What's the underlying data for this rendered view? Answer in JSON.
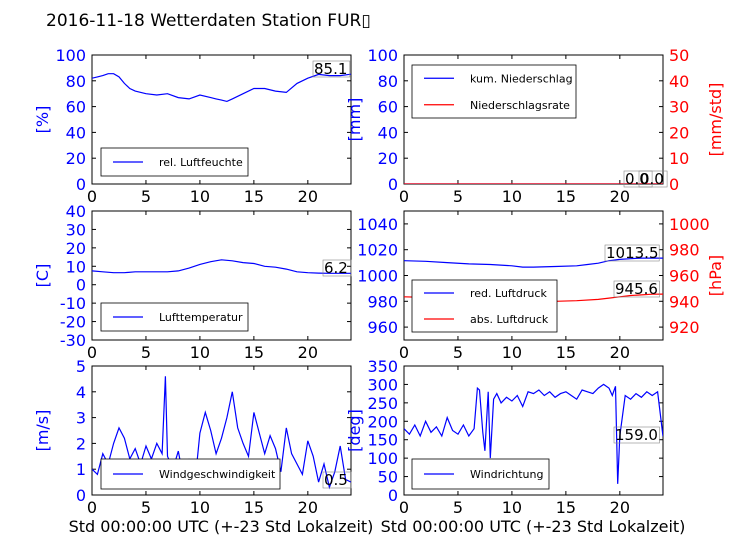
{
  "figure": {
    "title": "2016-11-18 Wetterdaten Station FUR▯",
    "xlabel": "Std 00:00:00 UTC (+-23 Std Lokalzeit)"
  },
  "colors": {
    "left_axis": "#0000ff",
    "right_axis": "#ff0000",
    "frame": "#000000"
  },
  "chart_data": [
    {
      "id": "humidity",
      "type": "line",
      "ylabel": "[%]",
      "xlim": [
        0,
        24
      ],
      "ylim": [
        0,
        100
      ],
      "xticks": [
        0,
        5,
        10,
        15,
        20
      ],
      "yticks": [
        0,
        20,
        40,
        60,
        80,
        100
      ],
      "legend": {
        "placement": "lower-left"
      },
      "annotation": "85.1",
      "series": [
        {
          "name": "rel. Luftfeuchte",
          "color": "#0000ff",
          "x": [
            0,
            0.5,
            1,
            1.5,
            2,
            2.5,
            3,
            3.5,
            4,
            5,
            6,
            7,
            8,
            9,
            10,
            11,
            11.5,
            12,
            12.5,
            13,
            14,
            15,
            16,
            17,
            18,
            19,
            20,
            21,
            22,
            23,
            24
          ],
          "y": [
            82,
            83,
            84,
            85.5,
            85.5,
            83,
            78,
            74,
            72,
            70,
            69,
            70,
            67,
            66,
            69,
            67,
            66,
            65,
            64,
            66,
            70,
            74,
            74,
            72,
            71,
            78,
            82,
            85,
            84,
            84,
            85.1
          ]
        }
      ]
    },
    {
      "id": "precipitation",
      "type": "line",
      "ylabel": "[mm]",
      "ylabel_right": "[mm/std]",
      "xlim": [
        0,
        24
      ],
      "ylim": [
        0,
        100
      ],
      "ylim_right": [
        0,
        50
      ],
      "xticks": [
        0,
        5,
        10,
        15,
        20
      ],
      "yticks": [
        0,
        20,
        40,
        60,
        80,
        100
      ],
      "yticks_right": [
        0,
        10,
        20,
        30,
        40,
        50
      ],
      "legend": {
        "placement": "upper-left"
      },
      "annotations": [
        "0.0",
        "0.0"
      ],
      "series": [
        {
          "name": "kum. Niederschlag",
          "color": "#0000ff",
          "axis": "left",
          "x": [
            0,
            24
          ],
          "y": [
            0,
            0
          ]
        },
        {
          "name": "Niederschlagsrate",
          "color": "#ff0000",
          "axis": "right",
          "x": [
            0,
            24
          ],
          "y": [
            0,
            0
          ]
        }
      ]
    },
    {
      "id": "temperature",
      "type": "line",
      "ylabel": "[C]",
      "xlim": [
        0,
        24
      ],
      "ylim": [
        -30,
        40
      ],
      "xticks": [
        0,
        5,
        10,
        15,
        20
      ],
      "yticks": [
        -30,
        -20,
        -10,
        0,
        10,
        20,
        30,
        40
      ],
      "legend": {
        "placement": "lower-left"
      },
      "annotation": "6.2",
      "series": [
        {
          "name": "Lufttemperatur",
          "color": "#0000ff",
          "x": [
            0,
            1,
            2,
            3,
            4,
            5,
            6,
            7,
            8,
            9,
            10,
            11,
            12,
            13,
            14,
            15,
            16,
            17,
            18,
            19,
            20,
            21,
            22,
            23,
            24
          ],
          "y": [
            7.5,
            7,
            6.5,
            6.5,
            7,
            7,
            7,
            7,
            7.5,
            9,
            11,
            12.5,
            13.5,
            13,
            12,
            11.5,
            10,
            9.5,
            8.5,
            7,
            6.5,
            6.3,
            6.2,
            6.2,
            6.2
          ]
        }
      ]
    },
    {
      "id": "pressure",
      "type": "line",
      "ylabel_right": "[hPa]",
      "xlim": [
        0,
        24
      ],
      "ylim": [
        950,
        1050
      ],
      "ylim_right": [
        910,
        1010
      ],
      "xticks": [
        0,
        5,
        10,
        15,
        20
      ],
      "yticks": [
        960,
        980,
        1000,
        1020,
        1040
      ],
      "yticks_right": [
        920,
        940,
        960,
        980,
        1000
      ],
      "legend": {
        "placement": "lower-left"
      },
      "annotations": [
        "1013.5",
        "945.6"
      ],
      "series": [
        {
          "name": "red. Luftdruck",
          "color": "#0000ff",
          "axis": "left",
          "x": [
            0,
            2,
            4,
            6,
            8,
            10,
            11,
            12,
            14,
            16,
            17,
            18,
            19,
            20,
            21,
            22,
            23,
            24
          ],
          "y": [
            1011.5,
            1011,
            1010,
            1009,
            1008.5,
            1007.5,
            1006.5,
            1006.5,
            1007,
            1007.5,
            1008.5,
            1009.5,
            1011.5,
            1012.5,
            1013,
            1013.5,
            1013.5,
            1013.5
          ]
        },
        {
          "name": "abs. Luftdruck",
          "color": "#ff0000",
          "axis": "right",
          "x": [
            0,
            2,
            4,
            6,
            8,
            10,
            12,
            14,
            16,
            18,
            19,
            20,
            21,
            22,
            23,
            24
          ],
          "y": [
            943.5,
            943,
            942,
            941,
            940.5,
            940,
            939.5,
            940,
            940.5,
            941.5,
            942.5,
            943.5,
            944.5,
            945,
            945.5,
            945.6
          ]
        }
      ]
    },
    {
      "id": "wind-speed",
      "type": "line",
      "ylabel": "[m/s]",
      "xlim": [
        0,
        24
      ],
      "ylim": [
        0,
        5
      ],
      "xticks": [
        0,
        5,
        10,
        15,
        20
      ],
      "yticks": [
        0,
        1,
        2,
        3,
        4,
        5
      ],
      "legend": {
        "placement": "lower-center"
      },
      "annotation": "0.5",
      "series": [
        {
          "name": "Windgeschwindigkeit",
          "color": "#0000ff",
          "x": [
            0,
            0.5,
            1,
            1.5,
            2,
            2.5,
            3,
            3.5,
            4,
            4.5,
            5,
            5.5,
            6,
            6.5,
            6.8,
            7,
            7.5,
            8,
            8.5,
            9,
            9.5,
            10,
            10.5,
            11,
            11.5,
            12,
            12.5,
            13,
            13.5,
            14,
            14.5,
            15,
            15.5,
            16,
            16.5,
            17,
            17.5,
            18,
            18.5,
            19,
            19.5,
            20,
            20.5,
            21,
            21.5,
            22,
            22.5,
            23,
            23.5,
            24
          ],
          "y": [
            1.0,
            0.8,
            1.6,
            1.2,
            2.0,
            2.6,
            2.2,
            1.4,
            1.8,
            1.2,
            1.9,
            1.4,
            2.0,
            1.6,
            4.6,
            1.5,
            1.0,
            1.7,
            0.6,
            1.4,
            0.3,
            2.4,
            3.2,
            2.5,
            1.6,
            2.2,
            3.0,
            4.0,
            2.6,
            2.0,
            1.5,
            3.2,
            2.4,
            1.6,
            2.3,
            1.8,
            0.9,
            2.6,
            1.6,
            1.2,
            0.8,
            2.1,
            1.5,
            0.5,
            1.2,
            0.3,
            0.9,
            1.9,
            0.6,
            0.5
          ]
        }
      ]
    },
    {
      "id": "wind-direction",
      "type": "line",
      "ylabel": "[deg]",
      "xlim": [
        0,
        24
      ],
      "ylim": [
        0,
        350
      ],
      "xticks": [
        0,
        5,
        10,
        15,
        20
      ],
      "yticks": [
        0,
        50,
        100,
        150,
        200,
        250,
        300,
        350
      ],
      "legend": {
        "placement": "lower-left"
      },
      "annotation": "159.0",
      "series": [
        {
          "name": "Windrichtung",
          "color": "#0000ff",
          "x": [
            0,
            0.5,
            1,
            1.5,
            2,
            2.5,
            3,
            3.5,
            4,
            4.5,
            5,
            5.5,
            6,
            6.5,
            6.8,
            7,
            7.3,
            7.5,
            7.8,
            8,
            8.3,
            8.6,
            9,
            9.5,
            10,
            10.5,
            11,
            11.5,
            12,
            12.5,
            13,
            13.5,
            14,
            14.5,
            15,
            15.5,
            16,
            16.5,
            17,
            17.5,
            18,
            18.5,
            19,
            19.3,
            19.6,
            19.8,
            20,
            20.5,
            21,
            21.5,
            22,
            22.5,
            23,
            23.5,
            24
          ],
          "y": [
            180,
            165,
            190,
            160,
            200,
            170,
            185,
            160,
            210,
            175,
            165,
            190,
            160,
            180,
            290,
            285,
            170,
            120,
            280,
            100,
            260,
            275,
            250,
            265,
            255,
            270,
            240,
            280,
            275,
            285,
            270,
            280,
            265,
            275,
            280,
            270,
            260,
            285,
            280,
            275,
            290,
            300,
            290,
            270,
            295,
            30,
            160,
            270,
            260,
            275,
            265,
            280,
            270,
            280,
            159
          ]
        }
      ]
    }
  ]
}
